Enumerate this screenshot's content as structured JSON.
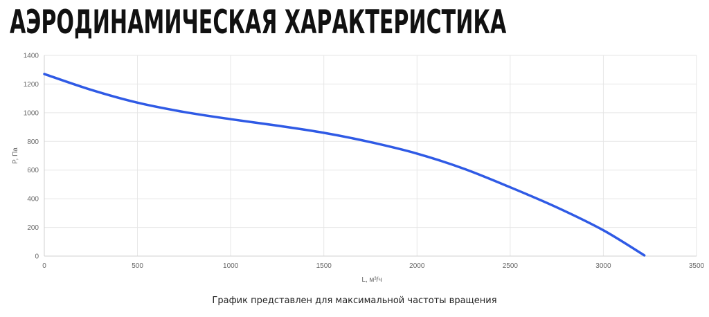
{
  "title": "АЭРОДИНАМИЧЕСКАЯ ХАРАКТЕРИСТИКА",
  "footnote": "График представлен для максимальной частоты вращения",
  "chart_data": {
    "type": "line",
    "xlabel": "L, м³/ч",
    "ylabel": "P, Па",
    "xlim": [
      0,
      3500
    ],
    "ylim": [
      0,
      1400
    ],
    "xticks": [
      0,
      500,
      1000,
      1500,
      2000,
      2500,
      3000,
      3500
    ],
    "yticks": [
      0,
      200,
      400,
      600,
      800,
      1000,
      1200,
      1400
    ],
    "grid": true,
    "series": [
      {
        "color": "#2f5ae5",
        "x": [
          0,
          250,
          500,
          750,
          1000,
          1250,
          1500,
          1750,
          2000,
          2250,
          2500,
          2750,
          3000,
          3220
        ],
        "y": [
          1270,
          1160,
          1070,
          1005,
          955,
          910,
          860,
          795,
          715,
          610,
          480,
          340,
          180,
          5
        ]
      }
    ]
  }
}
